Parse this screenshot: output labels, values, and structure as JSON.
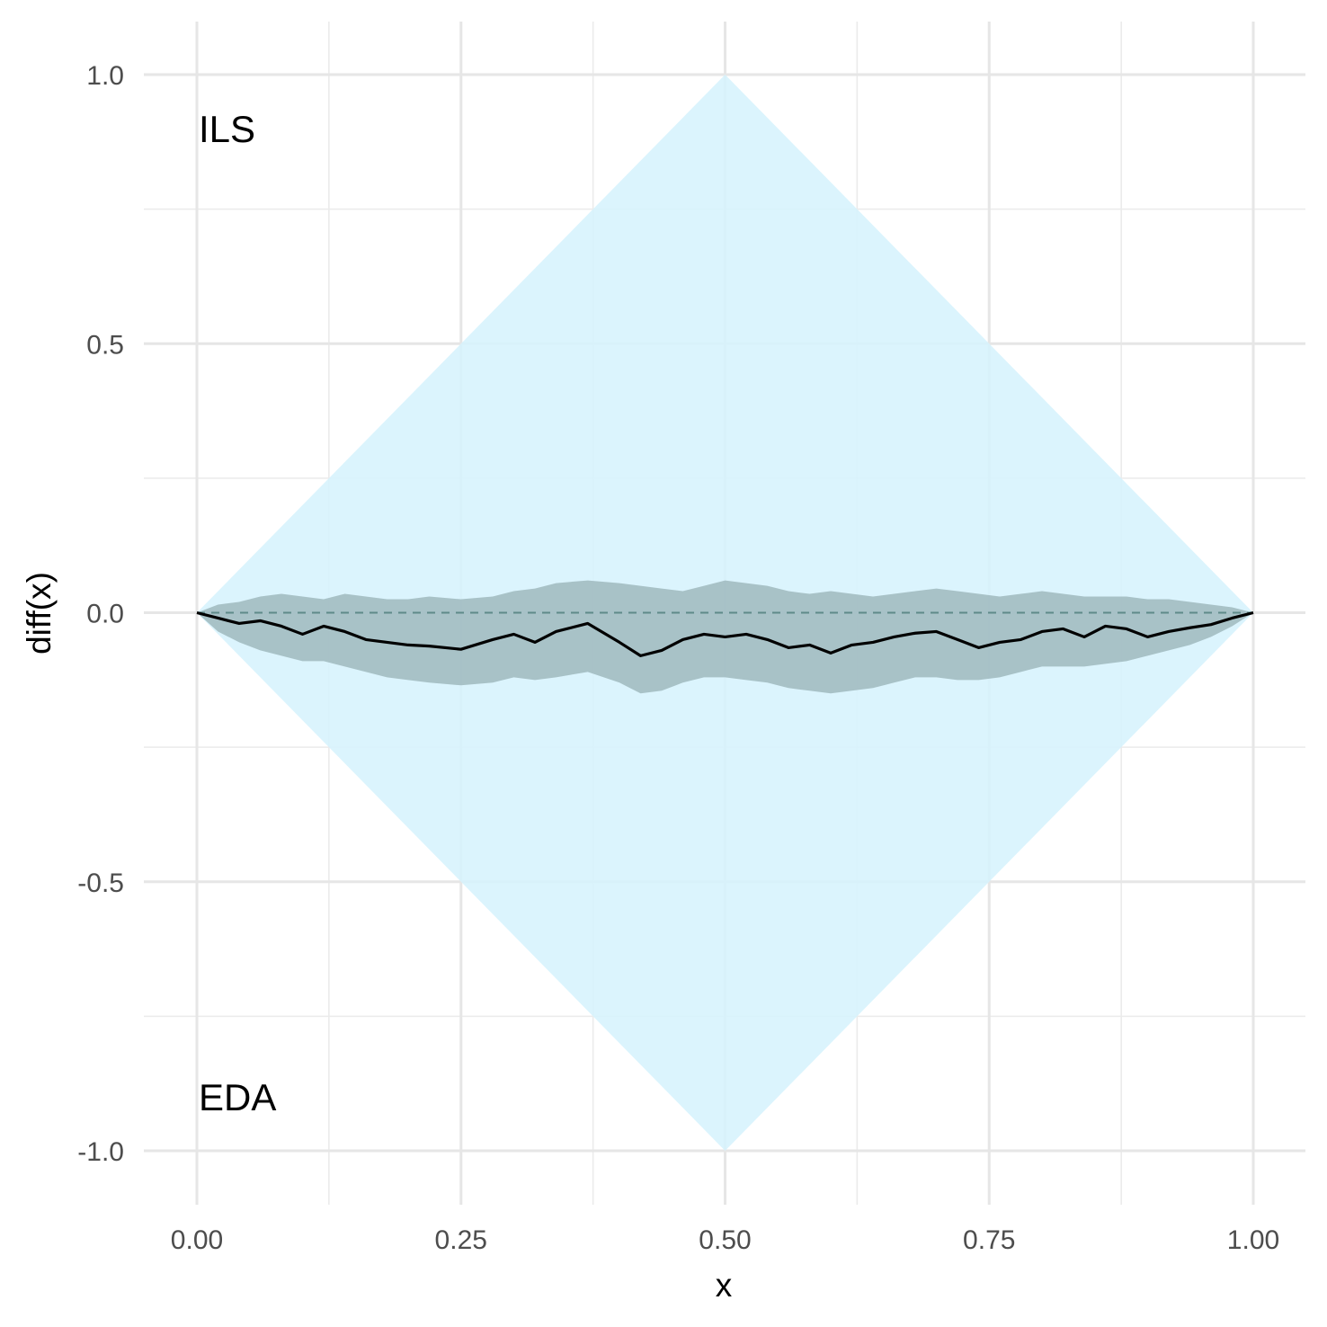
{
  "chart_data": {
    "type": "area",
    "title": "",
    "xlabel": "x",
    "ylabel": "diff(x)",
    "xlim": [
      0,
      1
    ],
    "ylim": [
      -1,
      1
    ],
    "x_ticks": [
      {
        "value": 0,
        "label": "0.00"
      },
      {
        "value": 0.25,
        "label": "0.25"
      },
      {
        "value": 0.5,
        "label": "0.50"
      },
      {
        "value": 0.75,
        "label": "0.75"
      },
      {
        "value": 1,
        "label": "1.00"
      }
    ],
    "y_ticks": [
      {
        "value": 1,
        "label": "1.0"
      },
      {
        "value": 0.5,
        "label": "0.5"
      },
      {
        "value": 0,
        "label": "0.0"
      },
      {
        "value": -0.5,
        "label": "-0.5"
      },
      {
        "value": -1,
        "label": "-1.0"
      }
    ],
    "grid": true,
    "legend": "none",
    "annotations": [
      {
        "text": "ILS",
        "x": 0.0,
        "y": 0.9
      },
      {
        "text": "EDA",
        "x": 0.0,
        "y": -0.9
      }
    ],
    "bound_region": {
      "x": [
        0,
        0.5,
        1,
        0.5
      ],
      "y": [
        0,
        1,
        0,
        -1
      ],
      "color": "#d6f3fd"
    },
    "reference_line": {
      "y": 0,
      "style": "dashed",
      "color": "#5f8a8a"
    },
    "series": [
      {
        "type": "line",
        "color": "#000000",
        "x": [
          0,
          0.02,
          0.04,
          0.06,
          0.08,
          0.1,
          0.12,
          0.14,
          0.16,
          0.18,
          0.2,
          0.22,
          0.25,
          0.28,
          0.3,
          0.32,
          0.34,
          0.37,
          0.4,
          0.42,
          0.44,
          0.46,
          0.48,
          0.5,
          0.52,
          0.54,
          0.56,
          0.58,
          0.6,
          0.62,
          0.64,
          0.66,
          0.68,
          0.7,
          0.72,
          0.74,
          0.76,
          0.78,
          0.8,
          0.82,
          0.84,
          0.86,
          0.88,
          0.9,
          0.92,
          0.94,
          0.96,
          0.98,
          1.0
        ],
        "y": [
          0,
          -0.01,
          -0.02,
          -0.015,
          -0.025,
          -0.04,
          -0.025,
          -0.035,
          -0.05,
          -0.055,
          -0.06,
          -0.062,
          -0.068,
          -0.05,
          -0.04,
          -0.055,
          -0.035,
          -0.02,
          -0.055,
          -0.08,
          -0.07,
          -0.05,
          -0.04,
          -0.045,
          -0.04,
          -0.05,
          -0.065,
          -0.06,
          -0.075,
          -0.06,
          -0.055,
          -0.045,
          -0.038,
          -0.035,
          -0.05,
          -0.065,
          -0.055,
          -0.05,
          -0.035,
          -0.03,
          -0.045,
          -0.025,
          -0.03,
          -0.045,
          -0.035,
          -0.028,
          -0.022,
          -0.01,
          0
        ]
      },
      {
        "type": "band",
        "color": "#9fb8bd",
        "x": [
          0,
          0.02,
          0.04,
          0.06,
          0.08,
          0.1,
          0.12,
          0.14,
          0.16,
          0.18,
          0.2,
          0.22,
          0.25,
          0.28,
          0.3,
          0.32,
          0.34,
          0.37,
          0.4,
          0.42,
          0.44,
          0.46,
          0.48,
          0.5,
          0.52,
          0.54,
          0.56,
          0.58,
          0.6,
          0.62,
          0.64,
          0.66,
          0.68,
          0.7,
          0.72,
          0.74,
          0.76,
          0.78,
          0.8,
          0.82,
          0.84,
          0.86,
          0.88,
          0.9,
          0.92,
          0.94,
          0.96,
          0.98,
          1.0
        ],
        "upper": [
          0,
          0.015,
          0.02,
          0.03,
          0.035,
          0.03,
          0.025,
          0.035,
          0.03,
          0.025,
          0.025,
          0.03,
          0.025,
          0.03,
          0.04,
          0.045,
          0.055,
          0.06,
          0.055,
          0.05,
          0.045,
          0.04,
          0.05,
          0.06,
          0.055,
          0.05,
          0.04,
          0.035,
          0.04,
          0.035,
          0.03,
          0.035,
          0.04,
          0.045,
          0.04,
          0.035,
          0.03,
          0.035,
          0.04,
          0.035,
          0.03,
          0.03,
          0.03,
          0.025,
          0.025,
          0.02,
          0.015,
          0.01,
          0
        ],
        "lower": [
          0,
          -0.035,
          -0.055,
          -0.07,
          -0.08,
          -0.09,
          -0.09,
          -0.1,
          -0.11,
          -0.12,
          -0.125,
          -0.13,
          -0.135,
          -0.13,
          -0.12,
          -0.125,
          -0.12,
          -0.11,
          -0.13,
          -0.15,
          -0.145,
          -0.13,
          -0.12,
          -0.12,
          -0.125,
          -0.13,
          -0.14,
          -0.145,
          -0.15,
          -0.145,
          -0.14,
          -0.13,
          -0.12,
          -0.12,
          -0.125,
          -0.125,
          -0.12,
          -0.11,
          -0.1,
          -0.1,
          -0.1,
          -0.095,
          -0.09,
          -0.08,
          -0.07,
          -0.06,
          -0.045,
          -0.025,
          0
        ]
      }
    ]
  }
}
